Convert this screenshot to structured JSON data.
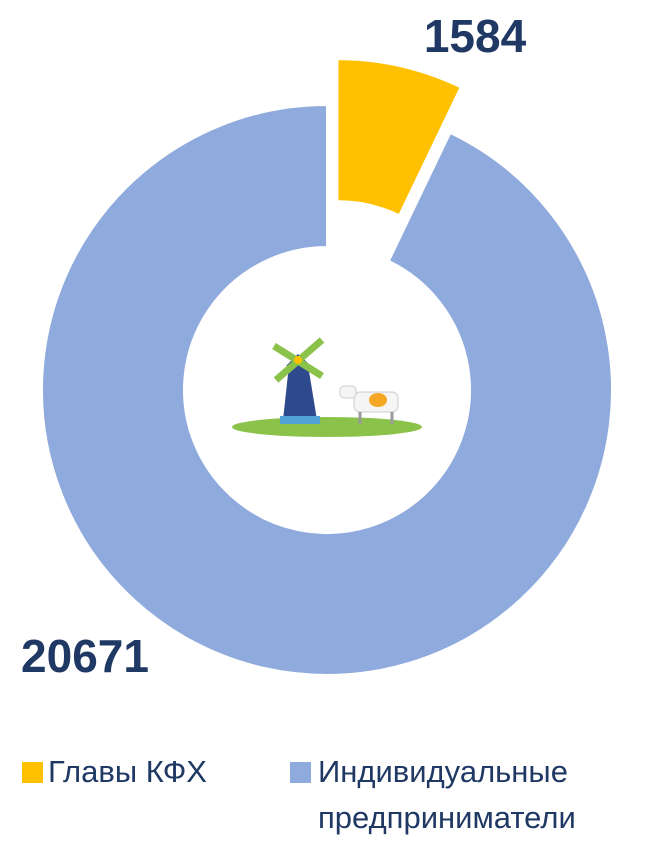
{
  "chart_data": {
    "type": "donut",
    "categories": [
      "Главы КФХ",
      "Индивидуальные предприниматели"
    ],
    "values": [
      1584,
      20671
    ],
    "colors": [
      "#FFC000",
      "#8FAADC"
    ],
    "legend": "bottom"
  }
}
